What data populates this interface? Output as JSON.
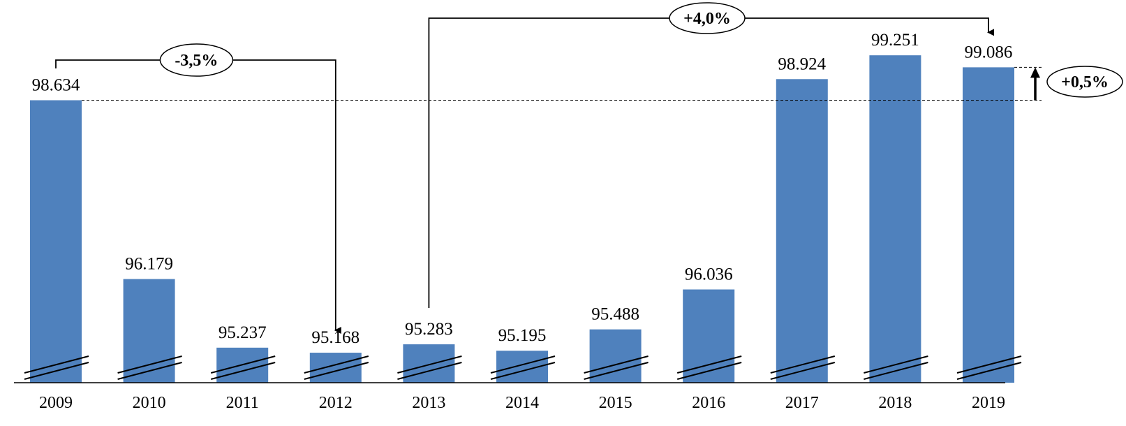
{
  "chart_data": {
    "type": "bar",
    "categories": [
      "2009",
      "2010",
      "2011",
      "2012",
      "2013",
      "2014",
      "2015",
      "2016",
      "2017",
      "2018",
      "2019"
    ],
    "values": [
      98634,
      96179,
      95237,
      95168,
      95283,
      95195,
      95488,
      96036,
      98924,
      99251,
      99086
    ],
    "value_labels": [
      "98.634",
      "96.179",
      "95.237",
      "95.168",
      "95.283",
      "95.195",
      "95.488",
      "96.036",
      "98.924",
      "99.251",
      "99.086"
    ],
    "title": "",
    "xlabel": "",
    "ylabel": "",
    "y_axis_broken": true,
    "grid": false,
    "bar_color": "#4f81bd",
    "annotations": [
      {
        "label": "-3,5%",
        "from": "2009",
        "to": "2012"
      },
      {
        "label": "+4,0%",
        "from": "2013",
        "to": "2019"
      },
      {
        "label": "+0,5%",
        "from": "2009",
        "to": "2019",
        "style": "reference-line"
      }
    ]
  }
}
